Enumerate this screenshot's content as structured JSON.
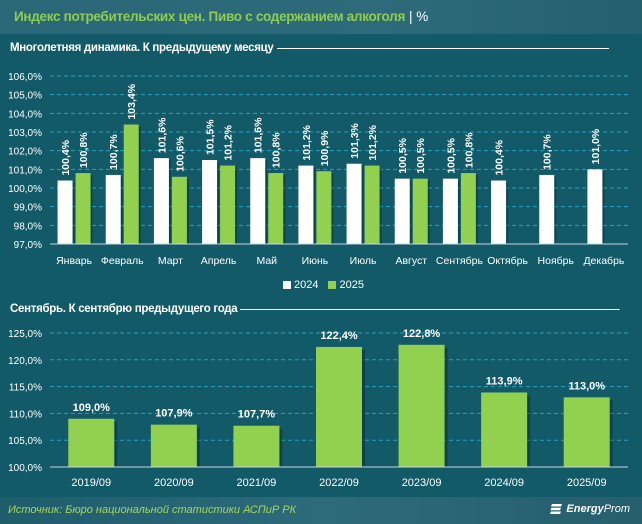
{
  "header": {
    "title": "Индекс потребительских цен. Пиво с содержанием алкоголя",
    "separator": "|",
    "unit": "%"
  },
  "colors": {
    "background": "#135a68",
    "series_2024": "#ffffff",
    "series_2025": "#92d050",
    "title_green": "#8fce4d",
    "gridline": "#2aa0bf"
  },
  "chart_data": [
    {
      "type": "bar",
      "title": "Многолетняя динамика. К предыдущему месяцу",
      "xlabel": "",
      "ylabel": "",
      "ylim": [
        97,
        106
      ],
      "yticks": [
        97,
        98,
        99,
        100,
        101,
        102,
        103,
        104,
        105,
        106
      ],
      "ytick_labels": [
        "97,0%",
        "98,0%",
        "99,0%",
        "100,0%",
        "101,0%",
        "102,0%",
        "103,0%",
        "104,0%",
        "105,0%",
        "106,0%"
      ],
      "grid": true,
      "legend": "bottom-center",
      "categories": [
        "Январь",
        "Февраль",
        "Март",
        "Апрель",
        "Май",
        "Июнь",
        "Июль",
        "Август",
        "Сентябрь",
        "Октябрь",
        "Ноябрь",
        "Декабрь"
      ],
      "series": [
        {
          "name": "2024",
          "values": [
            100.4,
            100.7,
            101.6,
            101.5,
            101.6,
            101.2,
            101.3,
            100.5,
            100.5,
            100.4,
            100.7,
            101.0
          ],
          "labels": [
            "100,4%",
            "100,7%",
            "101,6%",
            "101,5%",
            "101,6%",
            "101,2%",
            "101,3%",
            "100,5%",
            "100,5%",
            "100,4%",
            "100,7%",
            "101,0%"
          ]
        },
        {
          "name": "2025",
          "values": [
            100.8,
            103.4,
            100.6,
            101.2,
            100.8,
            100.9,
            101.2,
            100.5,
            100.8,
            null,
            null,
            null
          ],
          "labels": [
            "100,8%",
            "103,4%",
            "100,6%",
            "101,2%",
            "100,8%",
            "100,9%",
            "101,2%",
            "100,5%",
            "100,8%",
            null,
            null,
            null
          ]
        }
      ]
    },
    {
      "type": "bar",
      "title": "Сентябрь. К сентябрю предыдущего года",
      "xlabel": "",
      "ylabel": "",
      "ylim": [
        100,
        125
      ],
      "yticks": [
        100,
        105,
        110,
        115,
        120,
        125
      ],
      "ytick_labels": [
        "100,0%",
        "105,0%",
        "110,0%",
        "115,0%",
        "120,0%",
        "125,0%"
      ],
      "grid": true,
      "categories": [
        "2019/09",
        "2020/09",
        "2021/09",
        "2022/09",
        "2023/09",
        "2024/09",
        "2025/09"
      ],
      "values": [
        109.0,
        107.9,
        107.7,
        122.4,
        122.8,
        113.9,
        113.0
      ],
      "labels": [
        "109,0%",
        "107,9%",
        "107,7%",
        "122,4%",
        "122,8%",
        "113,9%",
        "113,0%"
      ]
    }
  ],
  "legend": [
    {
      "name": "2024",
      "color": "#ffffff"
    },
    {
      "name": "2025",
      "color": "#92d050"
    }
  ],
  "footer": {
    "source": "Источник: Бюро национальной статистики АСПиР РК",
    "logo_bold": "Energy",
    "logo_regular": "Prom"
  }
}
